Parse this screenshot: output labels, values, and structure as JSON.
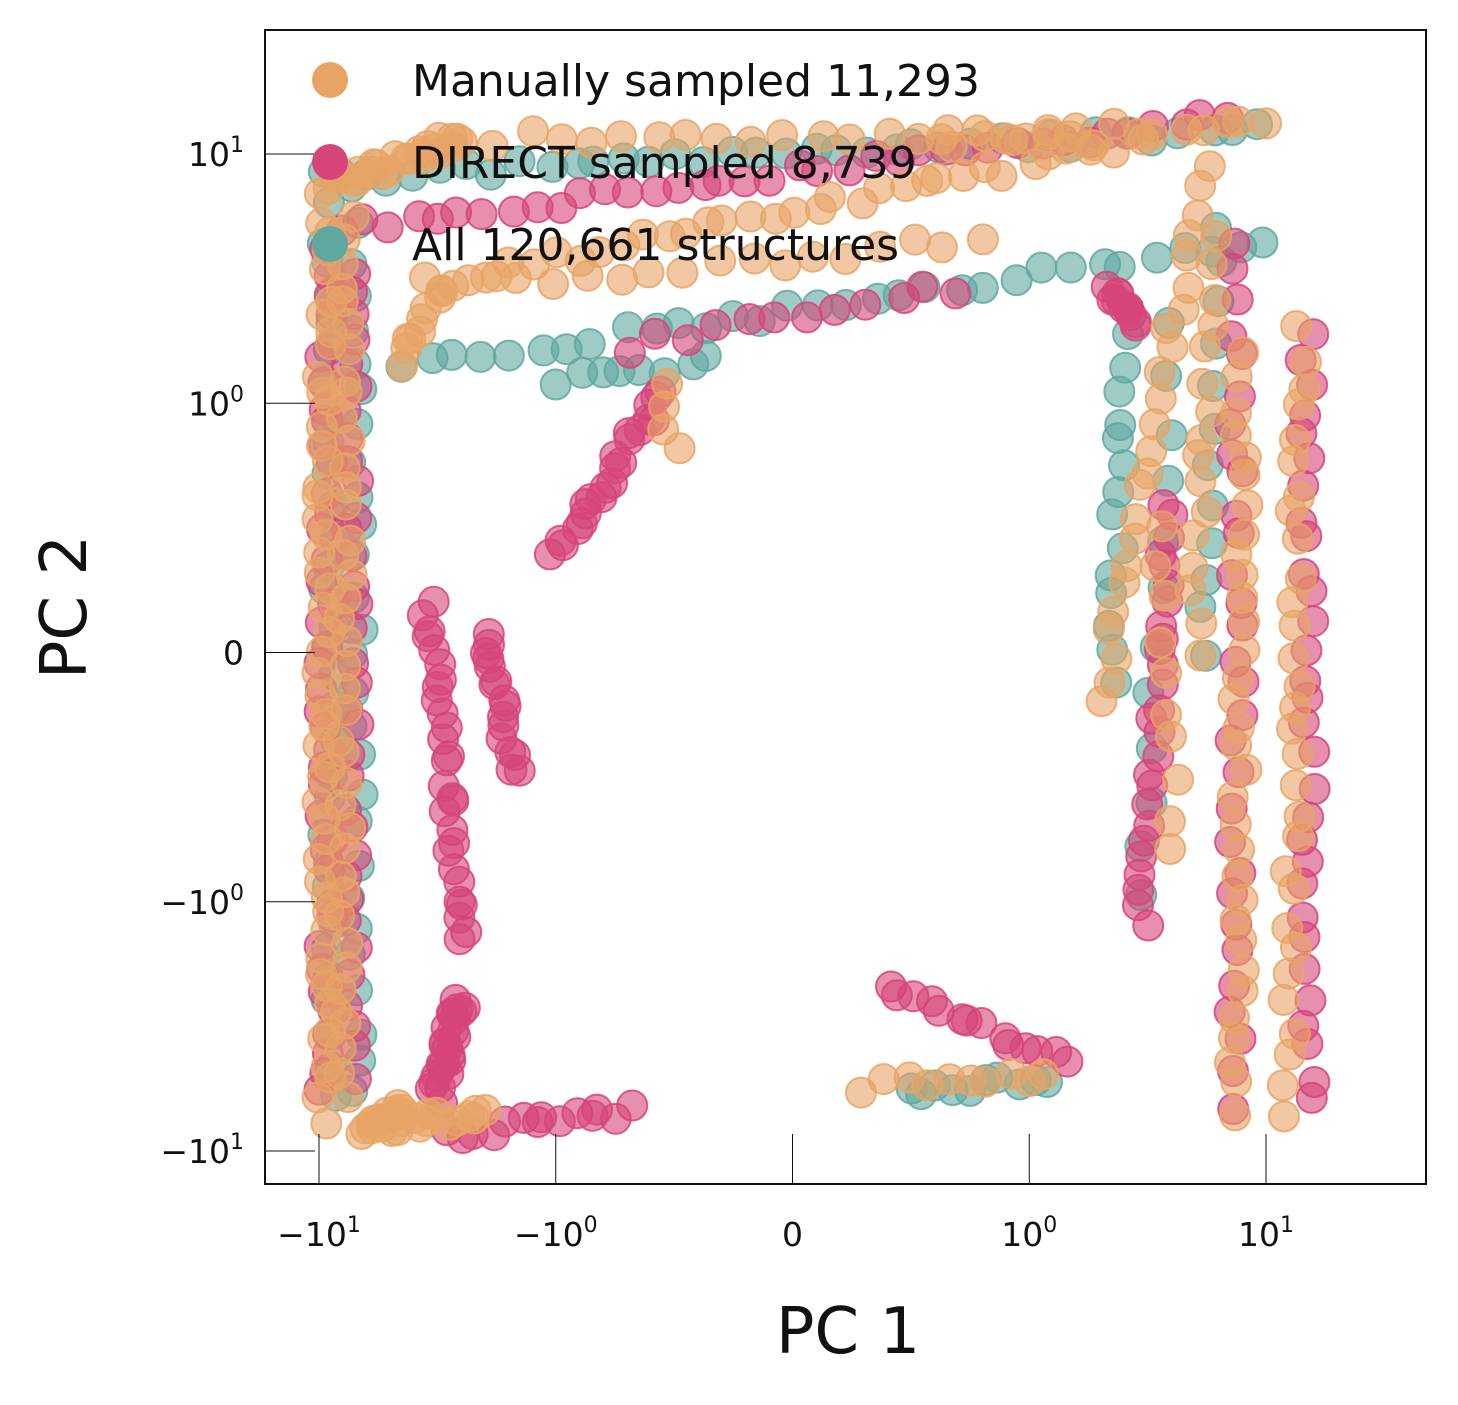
{
  "chart_data": {
    "type": "scatter",
    "title": "",
    "xlabel": "PC 1",
    "ylabel": "PC 2",
    "xscale": "symlog",
    "yscale": "symlog",
    "xlim": [
      -15,
      40
    ],
    "ylim": [
      -15,
      20
    ],
    "grid": false,
    "legend_position": "top-left",
    "x_ticks": [
      {
        "value": -10,
        "label_base": "−10",
        "label_exp": "1"
      },
      {
        "value": -1,
        "label_base": "−10",
        "label_exp": "0"
      },
      {
        "value": 0,
        "label_base": "0",
        "label_exp": ""
      },
      {
        "value": 1,
        "label_base": "10",
        "label_exp": "0"
      },
      {
        "value": 10,
        "label_base": "10",
        "label_exp": "1"
      }
    ],
    "y_ticks": [
      {
        "value": 10,
        "label_base": "10",
        "label_exp": "1"
      },
      {
        "value": 1,
        "label_base": "10",
        "label_exp": "0"
      },
      {
        "value": 0,
        "label_base": "0",
        "label_exp": ""
      },
      {
        "value": -1,
        "label_base": "−10",
        "label_exp": "0"
      },
      {
        "value": -10,
        "label_base": "−10",
        "label_exp": "1"
      }
    ],
    "series": [
      {
        "name": "All 120,661 structures",
        "label": "All 120,661 structures",
        "count": 120661,
        "color": "#5fa8a0",
        "segments": [
          {
            "from": [
              -9.0,
              -6.0
            ],
            "to": [
              -9.0,
              8.0
            ],
            "points": 32
          },
          {
            "from": [
              -7.0,
              -6.0
            ],
            "to": [
              -7.0,
              7.0
            ],
            "points": 28
          },
          {
            "from": [
              -8.5,
              8.0
            ],
            "to": [
              9.5,
              12.5
            ],
            "points": 36
          },
          {
            "from": [
              -4.5,
              1.4
            ],
            "to": [
              10.0,
              4.5
            ],
            "points": 32
          },
          {
            "from": [
              2.2,
              -0.1
            ],
            "to": [
              2.6,
              1.8
            ],
            "points": 14
          },
          {
            "from": [
              0.5,
              -6.0
            ],
            "to": [
              1.2,
              -5.0
            ],
            "points": 10
          },
          {
            "from": [
              -1.0,
              1.2
            ],
            "to": [
              -0.35,
              1.5
            ],
            "points": 8
          },
          {
            "from": [
              3.0,
              -1.0
            ],
            "to": [
              4.0,
              2.0
            ],
            "points": 12
          },
          {
            "from": [
              5.5,
              0.0
            ],
            "to": [
              6.5,
              5.0
            ],
            "points": 12
          }
        ]
      },
      {
        "name": "DIRECT sampled 8,739",
        "label": "DIRECT sampled 8,739",
        "count": 8739,
        "color": "#d6447a",
        "segments": [
          {
            "from": [
              -9.3,
              -5.8
            ],
            "to": [
              -9.3,
              4.0
            ],
            "points": 40
          },
          {
            "from": [
              -7.3,
              -4.8
            ],
            "to": [
              -7.3,
              3.5
            ],
            "points": 34
          },
          {
            "from": [
              -8.0,
              5.0
            ],
            "to": [
              7.0,
              14.0
            ],
            "points": 38
          },
          {
            "from": [
              -3.5,
              0.2
            ],
            "to": [
              -2.5,
              -1.5
            ],
            "points": 28
          },
          {
            "from": [
              -3.2,
              -6.0
            ],
            "to": [
              -2.5,
              -2.5
            ],
            "points": 24
          },
          {
            "from": [
              -1.0,
              0.4
            ],
            "to": [
              -0.55,
              1.1
            ],
            "points": 22
          },
          {
            "from": [
              -2.0,
              0.1
            ],
            "to": [
              -1.5,
              -0.5
            ],
            "points": 16
          },
          {
            "from": [
              3.0,
              -1.2
            ],
            "to": [
              3.8,
              0.6
            ],
            "points": 26
          },
          {
            "from": [
              2.2,
              3.0
            ],
            "to": [
              3.0,
              2.0
            ],
            "points": 12
          },
          {
            "from": [
              7.5,
              -6.5
            ],
            "to": [
              7.5,
              4.5
            ],
            "points": 30
          },
          {
            "from": [
              15.0,
              -6.5
            ],
            "to": [
              15.0,
              2.0
            ],
            "points": 30
          },
          {
            "from": [
              0.4,
              -2.2
            ],
            "to": [
              1.5,
              -4.5
            ],
            "points": 14
          },
          {
            "from": [
              -2.8,
              -8.5
            ],
            "to": [
              -0.7,
              -7.0
            ],
            "points": 14
          },
          {
            "from": [
              -0.7,
              1.7
            ],
            "to": [
              0.7,
              2.9
            ],
            "points": 12
          }
        ]
      },
      {
        "name": "Manually sampled 11,293",
        "label": "Manually sampled 11,293",
        "count": 11293,
        "color": "#e8a465",
        "segments": [
          {
            "from": [
              -9.5,
              -7.5
            ],
            "to": [
              -9.5,
              6.5
            ],
            "points": 50
          },
          {
            "from": [
              -8.0,
              -6.0
            ],
            "to": [
              -7.5,
              5.5
            ],
            "points": 40
          },
          {
            "from": [
              -8.5,
              7.5
            ],
            "to": [
              -2.5,
              11.5
            ],
            "points": 24
          },
          {
            "from": [
              -2.5,
              11.5
            ],
            "to": [
              3.0,
              12.5
            ],
            "points": 22
          },
          {
            "from": [
              -3.5,
              3.0
            ],
            "to": [
              10.0,
              14.0
            ],
            "points": 40
          },
          {
            "from": [
              -4.5,
              1.5
            ],
            "to": [
              -3.0,
              3.0
            ],
            "points": 10
          },
          {
            "from": [
              -2.0,
              3.0
            ],
            "to": [
              0.8,
              4.5
            ],
            "points": 16
          },
          {
            "from": [
              2.0,
              -0.2
            ],
            "to": [
              5.5,
              9.0
            ],
            "points": 24
          },
          {
            "from": [
              3.5,
              0.5
            ],
            "to": [
              4.2,
              -0.8
            ],
            "points": 10
          },
          {
            "from": [
              5.0,
              0.0
            ],
            "to": [
              6.0,
              4.5
            ],
            "points": 16
          },
          {
            "from": [
              7.5,
              -7.0
            ],
            "to": [
              8.0,
              1.5
            ],
            "points": 32
          },
          {
            "from": [
              12.5,
              -7.0
            ],
            "to": [
              14.0,
              2.0
            ],
            "points": 30
          },
          {
            "from": [
              -6.5,
              -8.5
            ],
            "to": [
              -4.5,
              -6.5
            ],
            "points": 14
          },
          {
            "from": [
              -5.0,
              -8.0
            ],
            "to": [
              -2.0,
              -7.0
            ],
            "points": 14
          },
          {
            "from": [
              0.3,
              -5.5
            ],
            "to": [
              1.2,
              -5.0
            ],
            "points": 10
          },
          {
            "from": [
              -0.55,
              1.15
            ],
            "to": [
              -0.5,
              0.8
            ],
            "points": 4
          },
          {
            "from": [
              0.6,
              11.0
            ],
            "to": [
              2.0,
              11.5
            ],
            "points": 8
          }
        ]
      }
    ]
  }
}
